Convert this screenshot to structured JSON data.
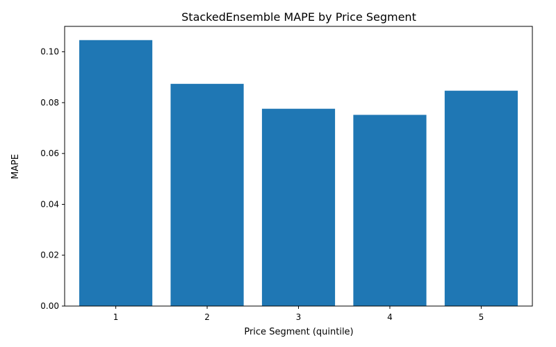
{
  "chart_data": {
    "type": "bar",
    "title": "StackedEnsemble MAPE by Price Segment",
    "xlabel": "Price Segment (quintile)",
    "ylabel": "MAPE",
    "categories": [
      "1",
      "2",
      "3",
      "4",
      "5"
    ],
    "values": [
      0.1046,
      0.0874,
      0.0776,
      0.0752,
      0.0847
    ],
    "ylim": [
      0,
      0.11
    ],
    "yticks": [
      0.0,
      0.02,
      0.04,
      0.06,
      0.08,
      0.1
    ],
    "ytick_labels": [
      "0.00",
      "0.02",
      "0.04",
      "0.06",
      "0.08",
      "0.10"
    ],
    "bar_color": "#1f77b4",
    "grid": false,
    "legend": false
  }
}
